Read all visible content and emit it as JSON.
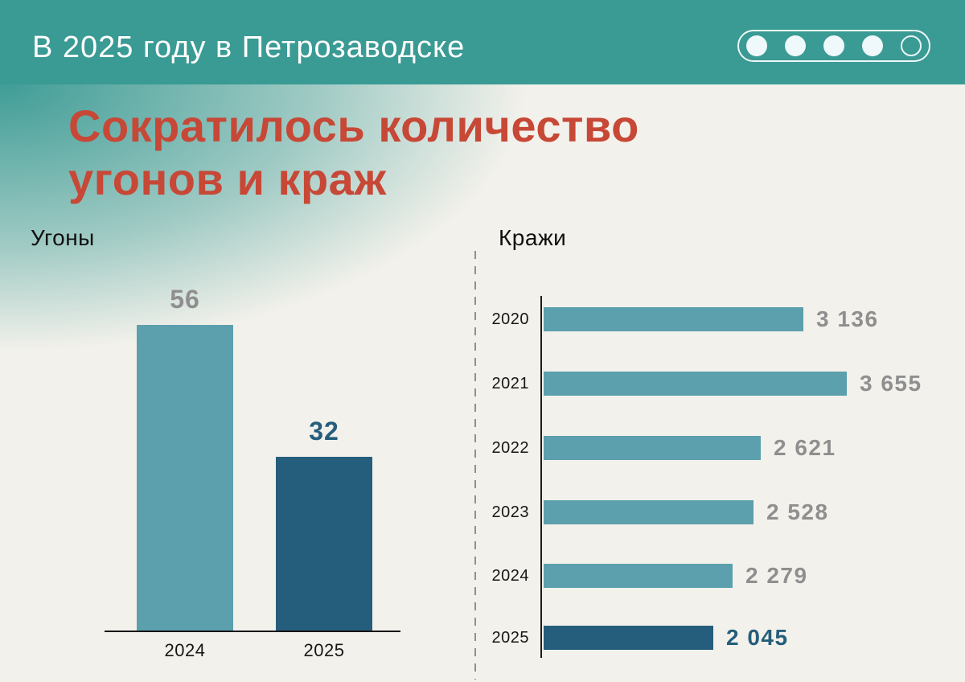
{
  "header": {
    "title": "В 2025 году в Петрозаводске",
    "progress_dots": {
      "total": 5,
      "filled": 4
    }
  },
  "heading": {
    "line1": "Сократилось количество",
    "line2": "угонов и краж"
  },
  "colors": {
    "header_teal": "#3A9A94",
    "accent_red": "#C74836",
    "bar_light_teal": "#5C9FAD",
    "bar_dark_blue": "#255E7C",
    "value_gray": "#8F8F8F",
    "text_black": "#161616",
    "background_cream": "#F3F1EB"
  },
  "chart_data": [
    {
      "type": "bar",
      "orientation": "vertical",
      "title": "Угоны",
      "categories": [
        "2024",
        "2025"
      ],
      "values": [
        56,
        32
      ],
      "value_labels": [
        "56",
        "32"
      ],
      "bar_colors": [
        "#5C9FAD",
        "#255E7C"
      ],
      "value_label_colors": [
        "#8F8F8F",
        "#255E7C"
      ],
      "ylim": [
        0,
        56
      ],
      "grid": false,
      "legend": false
    },
    {
      "type": "bar",
      "orientation": "horizontal",
      "title": "Кражи",
      "categories": [
        "2020",
        "2021",
        "2022",
        "2023",
        "2024",
        "2025"
      ],
      "values": [
        3136,
        3655,
        2621,
        2528,
        2279,
        2045
      ],
      "value_labels": [
        "3 136",
        "3 655",
        "2 621",
        "2 528",
        "2 279",
        "2 045"
      ],
      "bar_colors": [
        "#5C9FAD",
        "#5C9FAD",
        "#5C9FAD",
        "#5C9FAD",
        "#5C9FAD",
        "#255E7C"
      ],
      "value_label_colors": [
        "#8F8F8F",
        "#8F8F8F",
        "#8F8F8F",
        "#8F8F8F",
        "#8F8F8F",
        "#255E7C"
      ],
      "xlim": [
        0,
        3655
      ],
      "grid": false,
      "legend": false
    }
  ]
}
